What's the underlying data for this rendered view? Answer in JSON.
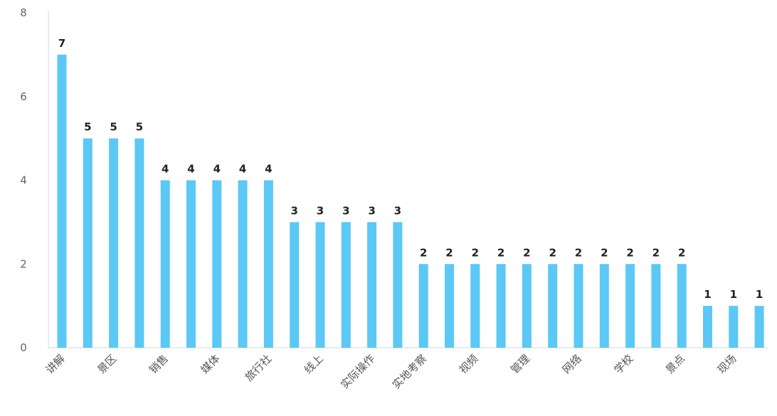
{
  "chart_data": {
    "type": "bar",
    "title": "",
    "xlabel": "",
    "ylabel": "",
    "ylim": [
      0,
      8
    ],
    "yticks": [
      0,
      2,
      4,
      6,
      8
    ],
    "grid": false,
    "bar_color": "#5bc8f5",
    "categories": [
      "讲解",
      "",
      "景区",
      "",
      "销售",
      "",
      "媒体",
      "",
      "旅行社",
      "",
      "线上",
      "",
      "实际操作",
      "",
      "实地考察",
      "",
      "视频",
      "",
      "管理",
      "",
      "网络",
      "",
      "学校",
      "",
      "景点",
      "",
      "现场",
      ""
    ],
    "values": [
      7,
      5,
      5,
      5,
      4,
      4,
      4,
      4,
      4,
      3,
      3,
      3,
      3,
      3,
      2,
      2,
      2,
      2,
      2,
      2,
      2,
      2,
      2,
      2,
      2,
      1,
      1,
      1
    ]
  }
}
